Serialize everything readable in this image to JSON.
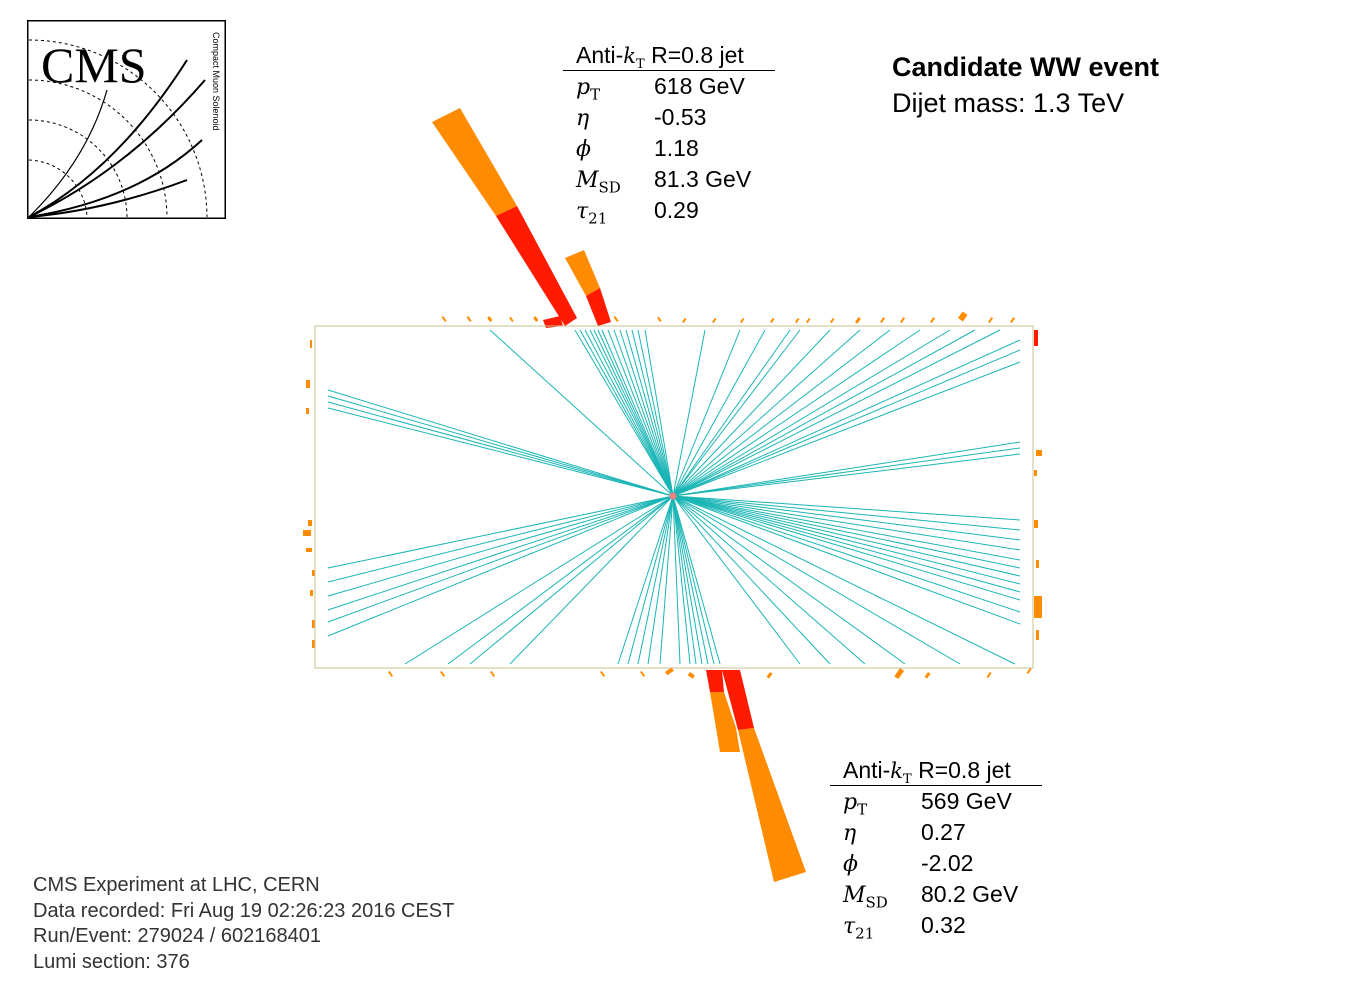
{
  "logo": {
    "name": "CMS",
    "subtitle": "Compact Muon Solenoid"
  },
  "event": {
    "title": "Candidate WW event",
    "dijet_mass": "Dijet mass: 1.3 TeV"
  },
  "jets": [
    {
      "algo_prefix": "Anti-",
      "k_symbol": "k",
      "k_sub": "T",
      "algo_suffix": " R=0.8 jet",
      "rows": [
        {
          "sym": "p",
          "sub": "T",
          "value": "618 GeV"
        },
        {
          "sym": "η",
          "sub": "",
          "value": "-0.53"
        },
        {
          "sym": "ϕ",
          "sub": "",
          "value": "1.18"
        },
        {
          "sym": "M",
          "sub": "SD",
          "value": "81.3 GeV"
        },
        {
          "sym": "τ",
          "sub": "21",
          "value": "0.29"
        }
      ]
    },
    {
      "algo_prefix": "Anti-",
      "k_symbol": "k",
      "k_sub": "T",
      "algo_suffix": " R=0.8 jet",
      "rows": [
        {
          "sym": "p",
          "sub": "T",
          "value": "569 GeV"
        },
        {
          "sym": "η",
          "sub": "",
          "value": "0.27"
        },
        {
          "sym": "ϕ",
          "sub": "",
          "value": "-2.02"
        },
        {
          "sym": "M",
          "sub": "SD",
          "value": "80.2 GeV"
        },
        {
          "sym": "τ",
          "sub": "21",
          "value": "0.32"
        }
      ]
    }
  ],
  "footer": {
    "experiment": "CMS Experiment at LHC, CERN",
    "recorded": "Data recorded: Fri Aug 19 02:26:23 2016 CEST",
    "run_event": "Run/Event: 279024 / 602168401",
    "lumi": "Lumi section: 376"
  },
  "colors": {
    "track": "#1bb5b5",
    "hcal": "#ff8c00",
    "ecal": "#ff1a00",
    "detector_outline": "#c8c090",
    "vertex": "#f08080",
    "footer_text": "#333333"
  }
}
